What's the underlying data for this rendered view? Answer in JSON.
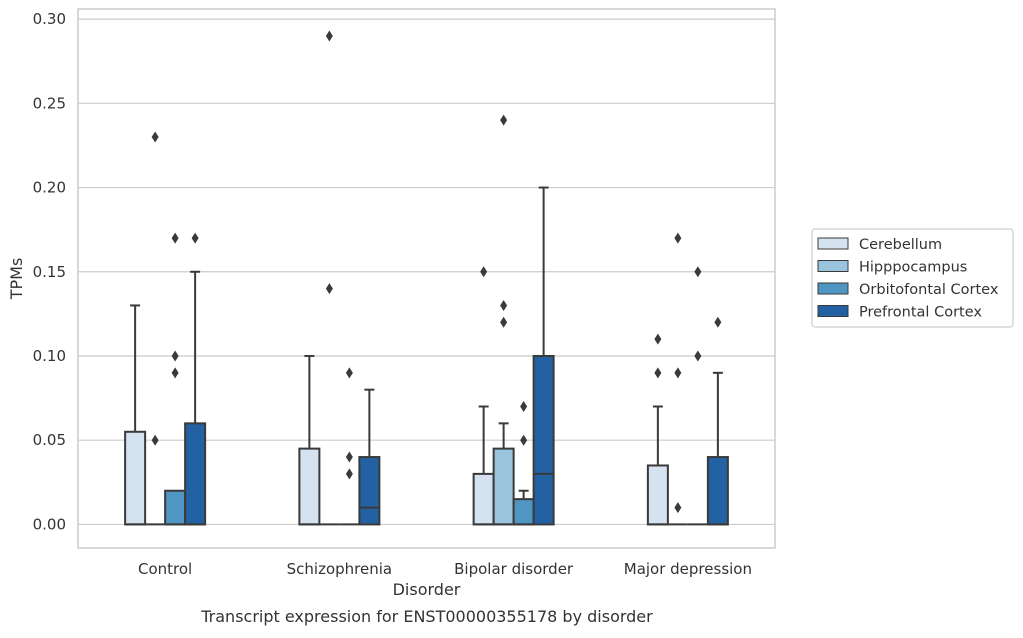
{
  "colors": {
    "Cerebellum": "#d5e2f0",
    "Hipppocampus": "#9ac4dd",
    "Orbitofontal Cortex": "#5096c4",
    "Prefrontal Cortex": "#2262a3",
    "grid": "#cccccc",
    "edge": "#3a3a3a"
  },
  "chart_data": {
    "type": "box",
    "caption": "Transcript expression for ENST00000355178 by disorder",
    "xlabel": "Disorder",
    "ylabel": "TPMs",
    "ylim": [
      -0.014,
      0.306
    ],
    "yticks": [
      0.0,
      0.05,
      0.1,
      0.15,
      0.2,
      0.25,
      0.3
    ],
    "ytick_labels": [
      "0.00",
      "0.05",
      "0.10",
      "0.15",
      "0.20",
      "0.25",
      "0.30"
    ],
    "grid": true,
    "legend_position": "right",
    "categories": [
      "Control",
      "Schizophrenia",
      "Bipolar disorder",
      "Major depression"
    ],
    "series": [
      {
        "name": "Cerebellum",
        "boxes": [
          {
            "q1": 0.0,
            "median": 0.0,
            "q3": 0.055,
            "whisker_low": 0.0,
            "whisker_high": 0.13,
            "outliers": []
          },
          {
            "q1": 0.0,
            "median": 0.0,
            "q3": 0.045,
            "whisker_low": 0.0,
            "whisker_high": 0.1,
            "outliers": []
          },
          {
            "q1": 0.0,
            "median": 0.0,
            "q3": 0.03,
            "whisker_low": 0.0,
            "whisker_high": 0.07,
            "outliers": [
              0.15
            ]
          },
          {
            "q1": 0.0,
            "median": 0.0,
            "q3": 0.035,
            "whisker_low": 0.0,
            "whisker_high": 0.07,
            "outliers": [
              0.09,
              0.11
            ]
          }
        ]
      },
      {
        "name": "Hipppocampus",
        "boxes": [
          {
            "q1": 0.0,
            "median": 0.0,
            "q3": 0.0,
            "whisker_low": 0.0,
            "whisker_high": 0.0,
            "outliers": [
              0.05,
              0.23
            ]
          },
          {
            "q1": 0.0,
            "median": 0.0,
            "q3": 0.0,
            "whisker_low": 0.0,
            "whisker_high": 0.0,
            "outliers": [
              0.14,
              0.29
            ]
          },
          {
            "q1": 0.0,
            "median": 0.0,
            "q3": 0.045,
            "whisker_low": 0.0,
            "whisker_high": 0.06,
            "outliers": [
              0.12,
              0.13,
              0.24
            ]
          },
          {
            "q1": 0.0,
            "median": 0.0,
            "q3": 0.0,
            "whisker_low": 0.0,
            "whisker_high": 0.0,
            "outliers": [
              0.01,
              0.09,
              0.17
            ]
          }
        ]
      },
      {
        "name": "Orbitofontal Cortex",
        "boxes": [
          {
            "q1": 0.0,
            "median": 0.0,
            "q3": 0.02,
            "whisker_low": 0.0,
            "whisker_high": 0.02,
            "outliers": [
              0.09,
              0.1,
              0.17
            ]
          },
          {
            "q1": 0.0,
            "median": 0.0,
            "q3": 0.0,
            "whisker_low": 0.0,
            "whisker_high": 0.0,
            "outliers": [
              0.03,
              0.04,
              0.09
            ]
          },
          {
            "q1": 0.0,
            "median": 0.0,
            "q3": 0.015,
            "whisker_low": 0.0,
            "whisker_high": 0.02,
            "outliers": [
              0.05,
              0.07
            ]
          },
          {
            "q1": 0.0,
            "median": 0.0,
            "q3": 0.0,
            "whisker_low": 0.0,
            "whisker_high": 0.0,
            "outliers": [
              0.1,
              0.15
            ]
          }
        ]
      },
      {
        "name": "Prefrontal Cortex",
        "boxes": [
          {
            "q1": 0.0,
            "median": 0.0,
            "q3": 0.06,
            "whisker_low": 0.0,
            "whisker_high": 0.15,
            "outliers": [
              0.17
            ]
          },
          {
            "q1": 0.0,
            "median": 0.01,
            "q3": 0.04,
            "whisker_low": 0.0,
            "whisker_high": 0.08,
            "outliers": []
          },
          {
            "q1": 0.0,
            "median": 0.03,
            "q3": 0.1,
            "whisker_low": 0.0,
            "whisker_high": 0.2,
            "outliers": []
          },
          {
            "q1": 0.0,
            "median": 0.0,
            "q3": 0.04,
            "whisker_low": 0.0,
            "whisker_high": 0.09,
            "outliers": [
              0.12
            ]
          }
        ]
      }
    ]
  }
}
